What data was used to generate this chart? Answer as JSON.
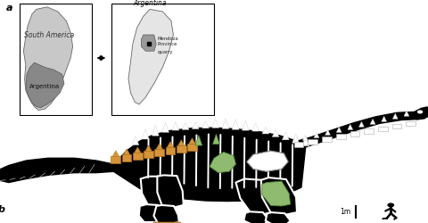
{
  "figure_width": 4.8,
  "figure_height": 2.5,
  "dpi": 100,
  "bg_color": "#ffffff",
  "label_a": "a",
  "label_b": "b",
  "map1_title": "South America",
  "map1_label": "Argentina",
  "map2_title": "Argentina",
  "map2_label1": "Mendoza\nProvince",
  "map2_label2": "quarry",
  "scale_label": "1m",
  "black": "#000000",
  "white": "#ffffff",
  "green": "#8fbb70",
  "orange": "#d4943a",
  "light_gray": "#c8c8c8",
  "dark_gray": "#888888",
  "map_bg": "#f0f0f0"
}
